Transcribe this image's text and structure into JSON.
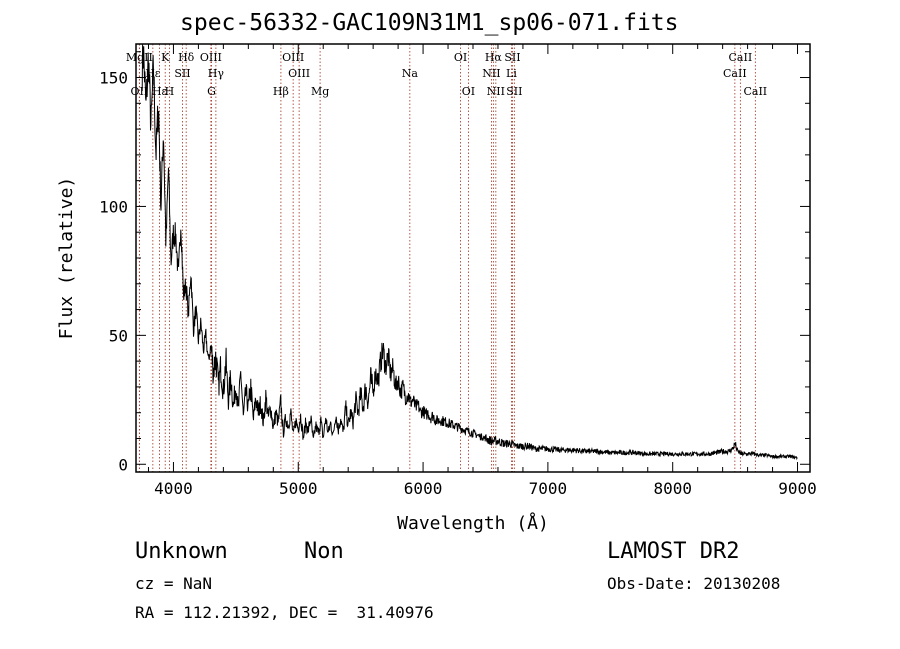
{
  "title": "spec-56332-GAC109N31M1_sp06-071.fits",
  "info": {
    "object_class": "Unknown",
    "subclass": "Non",
    "survey": "LAMOST DR2",
    "cz": "cz = NaN",
    "obs_date": "Obs-Date: 20130208",
    "radec": "RA = 112.21392, DEC =  31.40976"
  },
  "colors": {
    "spectrum": "#000000",
    "lines": "#a0301e",
    "axes": "#000000"
  },
  "chart_data": {
    "type": "line",
    "xlabel": "Wavelength (Å)",
    "ylabel": "Flux (relative)",
    "xlim": [
      3700,
      9100
    ],
    "ylim": [
      -3,
      163
    ],
    "xticks": [
      4000,
      5000,
      6000,
      7000,
      8000,
      9000
    ],
    "yticks": [
      0,
      50,
      100,
      150
    ],
    "grid": false,
    "spectrum": {
      "wavelength": [
        3700,
        3720,
        3740,
        3760,
        3780,
        3800,
        3820,
        3840,
        3860,
        3880,
        3900,
        3920,
        3940,
        3960,
        3980,
        4000,
        4020,
        4040,
        4060,
        4080,
        4100,
        4120,
        4140,
        4160,
        4180,
        4200,
        4220,
        4240,
        4260,
        4280,
        4300,
        4320,
        4340,
        4360,
        4380,
        4400,
        4420,
        4440,
        4460,
        4480,
        4500,
        4520,
        4540,
        4560,
        4580,
        4600,
        4620,
        4640,
        4660,
        4680,
        4700,
        4720,
        4740,
        4760,
        4780,
        4800,
        4820,
        4840,
        4860,
        4880,
        4900,
        4920,
        4940,
        4960,
        4980,
        5000,
        5020,
        5040,
        5060,
        5080,
        5100,
        5120,
        5140,
        5160,
        5180,
        5200,
        5220,
        5240,
        5260,
        5280,
        5300,
        5320,
        5340,
        5360,
        5380,
        5400,
        5420,
        5440,
        5460,
        5480,
        5500,
        5520,
        5540,
        5560,
        5580,
        5600,
        5620,
        5640,
        5660,
        5680,
        5700,
        5720,
        5740,
        5760,
        5780,
        5800,
        5820,
        5840,
        5860,
        5880,
        5900,
        5920,
        5940,
        5960,
        5980,
        6000,
        6020,
        6040,
        6060,
        6080,
        6100,
        6150,
        6200,
        6250,
        6300,
        6350,
        6400,
        6450,
        6500,
        6550,
        6600,
        6650,
        6700,
        6750,
        6800,
        6850,
        6900,
        6950,
        7000,
        7100,
        7200,
        7300,
        7400,
        7500,
        7600,
        7700,
        7800,
        7900,
        8000,
        8100,
        8200,
        8300,
        8400,
        8450,
        8480,
        8500,
        8520,
        8550,
        8600,
        8650,
        8700,
        8750,
        8800,
        8850,
        8900,
        8950,
        9000
      ],
      "flux": [
        140,
        152,
        148,
        160,
        138,
        158,
        130,
        155,
        120,
        140,
        100,
        130,
        85,
        115,
        78,
        90,
        88,
        72,
        95,
        65,
        70,
        58,
        75,
        52,
        60,
        48,
        55,
        44,
        50,
        40,
        46,
        36,
        42,
        30,
        38,
        28,
        40,
        25,
        34,
        22,
        32,
        20,
        36,
        18,
        28,
        22,
        30,
        17,
        26,
        20,
        24,
        16,
        26,
        18,
        22,
        14,
        20,
        16,
        24,
        12,
        18,
        15,
        20,
        11,
        17,
        14,
        19,
        10,
        16,
        13,
        18,
        9,
        15,
        12,
        17,
        10,
        18,
        12,
        16,
        11,
        20,
        13,
        18,
        12,
        22,
        15,
        20,
        16,
        25,
        20,
        27,
        22,
        30,
        24,
        33,
        28,
        36,
        32,
        40,
        44,
        38,
        42,
        35,
        37,
        30,
        33,
        28,
        30,
        26,
        27,
        24,
        25,
        22,
        23,
        20,
        21,
        19,
        20,
        18,
        19,
        17,
        17,
        16,
        15,
        14,
        13,
        12,
        11,
        10,
        9,
        9,
        8,
        8,
        7,
        7,
        7,
        6,
        6,
        6,
        5.5,
        5.5,
        5,
        5,
        4.5,
        4.5,
        4.5,
        4,
        4,
        4,
        4,
        4,
        4,
        5,
        5,
        6,
        8,
        5,
        4,
        4,
        4,
        3.5,
        3.5,
        3,
        3,
        3,
        3,
        2.5
      ]
    },
    "lines": [
      {
        "label": "MgII",
        "wavelength": 3727,
        "row": 0
      },
      {
        "label": "OII",
        "wavelength": 3727,
        "row": 2
      },
      {
        "label": "Hε",
        "wavelength": 3835,
        "row": 1
      },
      {
        "label": "Hε",
        "wavelength": 3889,
        "row": 2
      },
      {
        "label": "K",
        "wavelength": 3934,
        "row": 0
      },
      {
        "label": "H",
        "wavelength": 3968,
        "row": 2
      },
      {
        "label": "SII",
        "wavelength": 4072,
        "row": 1
      },
      {
        "label": "Hδ",
        "wavelength": 4102,
        "row": 0
      },
      {
        "label": "OIII",
        "wavelength": 4300,
        "row": 0
      },
      {
        "label": "Hγ",
        "wavelength": 4340,
        "row": 1
      },
      {
        "label": "G",
        "wavelength": 4305,
        "row": 2
      },
      {
        "label": "Hβ",
        "wavelength": 4861,
        "row": 2
      },
      {
        "label": "OIII",
        "wavelength": 4959,
        "row": 0
      },
      {
        "label": "OIII",
        "wavelength": 5007,
        "row": 1
      },
      {
        "label": "Mg",
        "wavelength": 5175,
        "row": 2
      },
      {
        "label": "Na",
        "wavelength": 5894,
        "row": 1
      },
      {
        "label": "OI",
        "wavelength": 6300,
        "row": 0
      },
      {
        "label": "OI",
        "wavelength": 6363,
        "row": 2
      },
      {
        "label": "Hα",
        "wavelength": 6563,
        "row": 0
      },
      {
        "label": "NII",
        "wavelength": 6548,
        "row": 1
      },
      {
        "label": "NII",
        "wavelength": 6583,
        "row": 2
      },
      {
        "label": "SII",
        "wavelength": 6716,
        "row": 0
      },
      {
        "label": "Li",
        "wavelength": 6708,
        "row": 1
      },
      {
        "label": "SII",
        "wavelength": 6731,
        "row": 2
      },
      {
        "label": "CaII",
        "wavelength": 8542,
        "row": 0
      },
      {
        "label": "CaII",
        "wavelength": 8498,
        "row": 1
      },
      {
        "label": "CaII",
        "wavelength": 8662,
        "row": 2
      }
    ]
  }
}
